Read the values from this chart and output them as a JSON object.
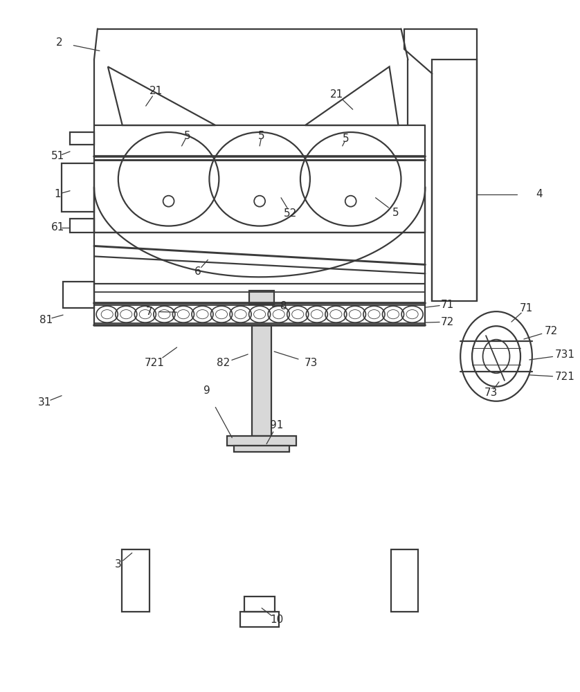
{
  "fig_width": 8.38,
  "fig_height": 10.0,
  "bg_color": "#ffffff",
  "lc": "#3a3a3a",
  "lw": 1.6
}
